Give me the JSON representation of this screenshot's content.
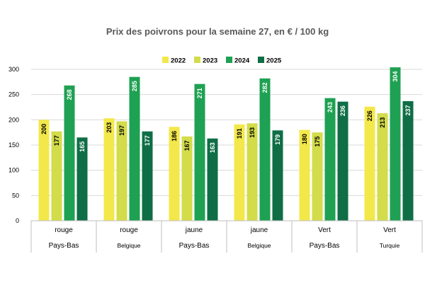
{
  "chart_data": {
    "type": "bar",
    "title": "Prix des poivrons pour la semaine 27, en € / 100 kg",
    "xlabel": "",
    "ylabel": "",
    "ylim": [
      0,
      300
    ],
    "yticks": [
      0,
      50,
      100,
      150,
      200,
      250,
      300
    ],
    "legend_position": "top",
    "grid": true,
    "categories": [
      {
        "color_label": "rouge",
        "country": "Pays-Bas"
      },
      {
        "color_label": "rouge",
        "country": "Belgique"
      },
      {
        "color_label": "jaune",
        "country": "Pays-Bas"
      },
      {
        "color_label": "jaune",
        "country": "Belgique"
      },
      {
        "color_label": "Vert",
        "country": "Pays-Bas"
      },
      {
        "color_label": "Vert",
        "country": "Turquie"
      }
    ],
    "series": [
      {
        "name": "2022",
        "color": "#f3e84a",
        "label_color": "#000000",
        "values": [
          200,
          203,
          186,
          191,
          180,
          226
        ]
      },
      {
        "name": "2023",
        "color": "#d3dc4a",
        "label_color": "#000000",
        "values": [
          177,
          197,
          167,
          193,
          175,
          213
        ]
      },
      {
        "name": "2024",
        "color": "#1ea152",
        "label_color": "#ffffff",
        "values": [
          268,
          285,
          271,
          282,
          243,
          304
        ]
      },
      {
        "name": "2025",
        "color": "#0f6e46",
        "label_color": "#ffffff",
        "values": [
          165,
          177,
          163,
          179,
          236,
          237
        ]
      }
    ]
  }
}
